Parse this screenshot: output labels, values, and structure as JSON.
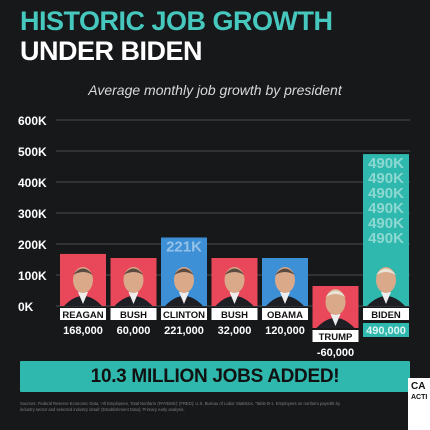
{
  "header": {
    "title_line1": "HISTORIC JOB GROWTH",
    "title_line2": "UNDER BIDEN",
    "subtitle": "Average monthly job growth by president"
  },
  "colors": {
    "background": "#17181a",
    "accent": "#46c8bf",
    "reagan": "#e8485a",
    "bush": "#e8485a",
    "clinton": "#3d8fd6",
    "bush_jr": "#e8485a",
    "obama": "#3d8fd6",
    "trump": "#e8485a",
    "biden": "#2fb8ad"
  },
  "chart_data": {
    "type": "bar",
    "categories": [
      "REAGAN",
      "BUSH",
      "CLINTON",
      "BUSH",
      "OBAMA",
      "TRUMP",
      "BIDEN"
    ],
    "values": [
      168000,
      60000,
      221000,
      32000,
      120000,
      -60000,
      490000
    ],
    "value_labels": [
      "168,000",
      "60,000",
      "221,000",
      "32,000",
      "120,000",
      "-60,000",
      "490,000"
    ],
    "overlay_labels": [
      "",
      "",
      "221K",
      "",
      "",
      "",
      "490K"
    ],
    "ylim": [
      -60000,
      600000
    ],
    "yticks": [
      0,
      100000,
      200000,
      300000,
      400000,
      500000,
      600000
    ],
    "ytick_labels": [
      "0K",
      "100K",
      "200K",
      "300K",
      "400K",
      "500K",
      "600K"
    ],
    "grid": true,
    "legend": "none",
    "portrait_icons": [
      "reagan-portrait-icon",
      "bush-portrait-icon",
      "clinton-portrait-icon",
      "bush-jr-portrait-icon",
      "obama-portrait-icon",
      "trump-portrait-icon",
      "biden-portrait-icon"
    ]
  },
  "banner": {
    "text": "10.3 MILLION JOBS ADDED!"
  },
  "sources": {
    "text": "Sources: Federal Reserve Economic Data, 'All Employees, Total Nonfarm (PAYEMS)' (FRED); U.S. Bureau of Labor Statistics, 'Table B-1. Employees on nonfarm payrolls by industry sector and selected industry detail' (Establishment Data); Primary early analysis."
  },
  "logo": {
    "line1": "CA",
    "line2": "ACTI"
  }
}
